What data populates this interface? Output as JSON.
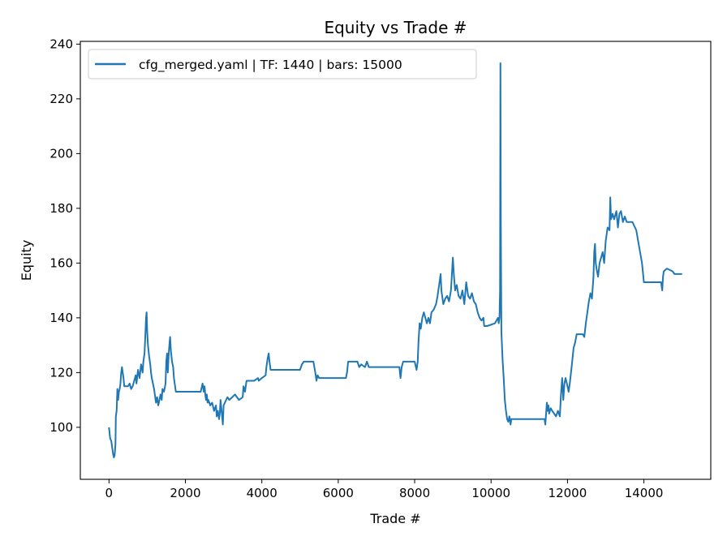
{
  "chart_data": {
    "type": "line",
    "title": "Equity vs Trade #",
    "xlabel": "Trade #",
    "ylabel": "Equity",
    "xlim": [
      -750,
      15750
    ],
    "ylim": [
      81,
      241
    ],
    "xticks": [
      0,
      2000,
      4000,
      6000,
      8000,
      10000,
      12000,
      14000
    ],
    "yticks": [
      100,
      120,
      140,
      160,
      180,
      200,
      220,
      240
    ],
    "grid": false,
    "legend": {
      "position": "top-left"
    },
    "series": [
      {
        "name": "cfg_merged.yaml | TF: 1440 | bars: 15000",
        "color": "#1f77b4",
        "points": [
          [
            0,
            100
          ],
          [
            30,
            96
          ],
          [
            60,
            95
          ],
          [
            90,
            92
          ],
          [
            110,
            90
          ],
          [
            130,
            89
          ],
          [
            150,
            90
          ],
          [
            170,
            94
          ],
          [
            180,
            104
          ],
          [
            200,
            106
          ],
          [
            210,
            110
          ],
          [
            220,
            114
          ],
          [
            240,
            110
          ],
          [
            260,
            113
          ],
          [
            280,
            114
          ],
          [
            300,
            116
          ],
          [
            320,
            120
          ],
          [
            340,
            122
          ],
          [
            360,
            120
          ],
          [
            380,
            118
          ],
          [
            400,
            115
          ],
          [
            500,
            115
          ],
          [
            540,
            116
          ],
          [
            580,
            114
          ],
          [
            620,
            115
          ],
          [
            660,
            117
          ],
          [
            700,
            119
          ],
          [
            720,
            116
          ],
          [
            760,
            121
          ],
          [
            800,
            118
          ],
          [
            840,
            123
          ],
          [
            880,
            120
          ],
          [
            900,
            124
          ],
          [
            930,
            127
          ],
          [
            950,
            133
          ],
          [
            970,
            140
          ],
          [
            985,
            142
          ],
          [
            1000,
            135
          ],
          [
            1020,
            130
          ],
          [
            1050,
            126
          ],
          [
            1080,
            123
          ],
          [
            1100,
            120
          ],
          [
            1120,
            118
          ],
          [
            1150,
            116
          ],
          [
            1180,
            114
          ],
          [
            1200,
            112
          ],
          [
            1230,
            109
          ],
          [
            1260,
            111
          ],
          [
            1290,
            108
          ],
          [
            1320,
            110
          ],
          [
            1350,
            112
          ],
          [
            1380,
            110
          ],
          [
            1400,
            114
          ],
          [
            1440,
            113
          ],
          [
            1480,
            116
          ],
          [
            1500,
            124
          ],
          [
            1520,
            127
          ],
          [
            1540,
            120
          ],
          [
            1560,
            126
          ],
          [
            1580,
            130
          ],
          [
            1600,
            133
          ],
          [
            1620,
            128
          ],
          [
            1650,
            124
          ],
          [
            1680,
            122
          ],
          [
            1700,
            118
          ],
          [
            1720,
            116
          ],
          [
            1750,
            113
          ],
          [
            2000,
            113
          ],
          [
            2300,
            113
          ],
          [
            2400,
            113
          ],
          [
            2450,
            116
          ],
          [
            2480,
            113
          ],
          [
            2500,
            115
          ],
          [
            2520,
            112
          ],
          [
            2540,
            110
          ],
          [
            2560,
            112
          ],
          [
            2580,
            109
          ],
          [
            2600,
            110
          ],
          [
            2650,
            108
          ],
          [
            2700,
            109
          ],
          [
            2750,
            106
          ],
          [
            2800,
            108
          ],
          [
            2820,
            104
          ],
          [
            2850,
            106
          ],
          [
            2880,
            103
          ],
          [
            2900,
            105
          ],
          [
            2920,
            110
          ],
          [
            2940,
            107
          ],
          [
            2960,
            104
          ],
          [
            2980,
            101
          ],
          [
            3000,
            108
          ],
          [
            3100,
            111
          ],
          [
            3150,
            110
          ],
          [
            3300,
            112
          ],
          [
            3400,
            110
          ],
          [
            3500,
            111
          ],
          [
            3520,
            115
          ],
          [
            3560,
            113
          ],
          [
            3600,
            117
          ],
          [
            3800,
            117
          ],
          [
            3900,
            118
          ],
          [
            3920,
            117
          ],
          [
            4000,
            118
          ],
          [
            4100,
            119
          ],
          [
            4120,
            122
          ],
          [
            4150,
            125
          ],
          [
            4180,
            127
          ],
          [
            4200,
            124
          ],
          [
            4230,
            121
          ],
          [
            4600,
            121
          ],
          [
            5000,
            121
          ],
          [
            5050,
            123
          ],
          [
            5100,
            124
          ],
          [
            5350,
            124
          ],
          [
            5400,
            120
          ],
          [
            5430,
            117
          ],
          [
            5460,
            119
          ],
          [
            5500,
            118
          ],
          [
            6200,
            118
          ],
          [
            6230,
            120
          ],
          [
            6260,
            124
          ],
          [
            6500,
            124
          ],
          [
            6550,
            122
          ],
          [
            6600,
            123
          ],
          [
            6700,
            122
          ],
          [
            6750,
            124
          ],
          [
            6800,
            122
          ],
          [
            7000,
            122
          ],
          [
            7500,
            122
          ],
          [
            7600,
            122
          ],
          [
            7630,
            118
          ],
          [
            7660,
            122
          ],
          [
            7700,
            124
          ],
          [
            8000,
            124
          ],
          [
            8050,
            121
          ],
          [
            8080,
            124
          ],
          [
            8100,
            131
          ],
          [
            8130,
            138
          ],
          [
            8160,
            136
          ],
          [
            8200,
            140
          ],
          [
            8240,
            142
          ],
          [
            8280,
            140
          ],
          [
            8320,
            138
          ],
          [
            8360,
            140
          ],
          [
            8400,
            138
          ],
          [
            8440,
            142
          ],
          [
            8500,
            143
          ],
          [
            8560,
            145
          ],
          [
            8600,
            148
          ],
          [
            8640,
            152
          ],
          [
            8680,
            156
          ],
          [
            8700,
            150
          ],
          [
            8750,
            145
          ],
          [
            8800,
            147
          ],
          [
            8850,
            148
          ],
          [
            8900,
            146
          ],
          [
            8950,
            150
          ],
          [
            9000,
            162
          ],
          [
            9030,
            155
          ],
          [
            9060,
            150
          ],
          [
            9100,
            152
          ],
          [
            9150,
            148
          ],
          [
            9200,
            147
          ],
          [
            9250,
            150
          ],
          [
            9300,
            145
          ],
          [
            9350,
            153
          ],
          [
            9400,
            148
          ],
          [
            9450,
            147
          ],
          [
            9500,
            149
          ],
          [
            9550,
            146
          ],
          [
            9600,
            145
          ],
          [
            9650,
            142
          ],
          [
            9700,
            140
          ],
          [
            9750,
            139
          ],
          [
            9800,
            140
          ],
          [
            9820,
            137
          ],
          [
            9900,
            137
          ],
          [
            10100,
            138
          ],
          [
            10180,
            140
          ],
          [
            10200,
            138
          ],
          [
            10220,
            140
          ],
          [
            10235,
            150
          ],
          [
            10245,
            233
          ],
          [
            10255,
            175
          ],
          [
            10270,
            135
          ],
          [
            10300,
            125
          ],
          [
            10330,
            118
          ],
          [
            10360,
            110
          ],
          [
            10390,
            106
          ],
          [
            10420,
            103
          ],
          [
            10450,
            102
          ],
          [
            10480,
            104
          ],
          [
            10510,
            101
          ],
          [
            10530,
            103
          ],
          [
            10600,
            103
          ],
          [
            10800,
            103
          ],
          [
            11000,
            103
          ],
          [
            11200,
            103
          ],
          [
            11400,
            103
          ],
          [
            11420,
            101
          ],
          [
            11440,
            105
          ],
          [
            11460,
            109
          ],
          [
            11480,
            106
          ],
          [
            11500,
            108
          ],
          [
            11520,
            105
          ],
          [
            11560,
            107
          ],
          [
            11600,
            106
          ],
          [
            11650,
            105
          ],
          [
            11700,
            104
          ],
          [
            11750,
            106
          ],
          [
            11800,
            104
          ],
          [
            11830,
            112
          ],
          [
            11860,
            118
          ],
          [
            11890,
            110
          ],
          [
            11920,
            116
          ],
          [
            11950,
            118
          ],
          [
            12000,
            115
          ],
          [
            12030,
            113
          ],
          [
            12060,
            116
          ],
          [
            12100,
            121
          ],
          [
            12130,
            125
          ],
          [
            12160,
            129
          ],
          [
            12200,
            131
          ],
          [
            12240,
            134
          ],
          [
            12400,
            134
          ],
          [
            12440,
            133
          ],
          [
            12480,
            138
          ],
          [
            12520,
            142
          ],
          [
            12560,
            146
          ],
          [
            12600,
            149
          ],
          [
            12640,
            147
          ],
          [
            12680,
            155
          ],
          [
            12700,
            164
          ],
          [
            12720,
            167
          ],
          [
            12740,
            160
          ],
          [
            12760,
            158
          ],
          [
            12800,
            155
          ],
          [
            12840,
            160
          ],
          [
            12880,
            162
          ],
          [
            12920,
            164
          ],
          [
            12960,
            160
          ],
          [
            13000,
            168
          ],
          [
            13050,
            173
          ],
          [
            13100,
            172
          ],
          [
            13120,
            184
          ],
          [
            13140,
            176
          ],
          [
            13180,
            178
          ],
          [
            13220,
            176
          ],
          [
            13280,
            179
          ],
          [
            13320,
            173
          ],
          [
            13360,
            178
          ],
          [
            13400,
            179
          ],
          [
            13450,
            175
          ],
          [
            13500,
            177
          ],
          [
            13550,
            175
          ],
          [
            13700,
            175
          ],
          [
            13800,
            172
          ],
          [
            13850,
            168
          ],
          [
            13900,
            164
          ],
          [
            13950,
            160
          ],
          [
            14000,
            153
          ],
          [
            14300,
            153
          ],
          [
            14450,
            153
          ],
          [
            14480,
            150
          ],
          [
            14500,
            155
          ],
          [
            14520,
            157
          ],
          [
            14600,
            158
          ],
          [
            14750,
            157
          ],
          [
            14800,
            156
          ],
          [
            15000,
            156
          ]
        ]
      }
    ]
  }
}
